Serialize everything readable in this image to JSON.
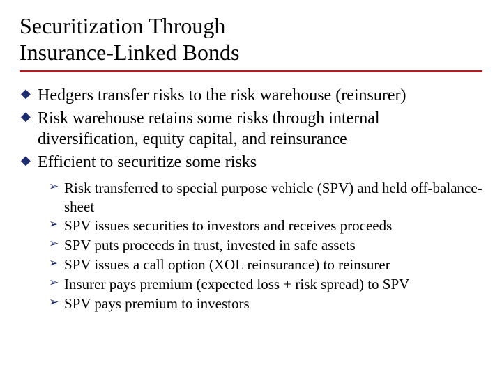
{
  "colors": {
    "rule": "#b01f24",
    "diamond": "#1a2a6c",
    "arrow": "#1a2a6c",
    "text": "#000000",
    "background": "#ffffff"
  },
  "title_line1": "Securitization Through",
  "title_line2": "Insurance-Linked Bonds",
  "level1": [
    "Hedgers transfer risks to the risk warehouse (reinsurer)",
    "Risk warehouse retains some risks through internal diversification, equity capital, and reinsurance",
    "Efficient to securitize some risks"
  ],
  "level2": [
    "Risk transferred to special purpose vehicle (SPV) and held off-balance-sheet",
    "SPV issues securities to investors and receives proceeds",
    "SPV puts proceeds in trust, invested in safe assets",
    "SPV issues a call option (XOL reinsurance) to reinsurer",
    "Insurer pays premium (expected loss + risk spread) to SPV",
    "SPV pays premium to investors"
  ]
}
